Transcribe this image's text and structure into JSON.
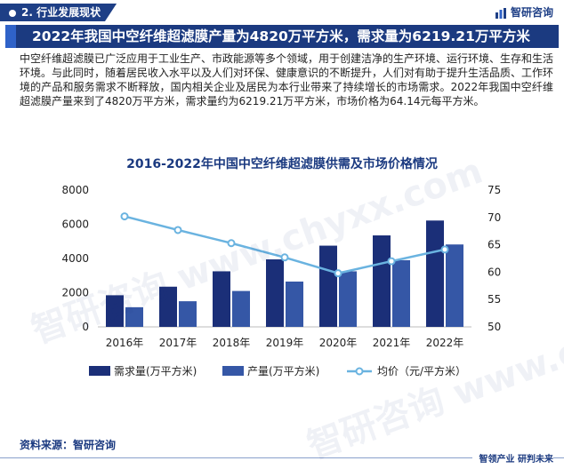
{
  "header": {
    "section_label": "2. 行业发展现状",
    "brand_name": "智研咨询"
  },
  "headline": "2022年我国中空纤维超滤膜产量为4820万平方米，需求量为6219.21万平方米",
  "paragraph": "中空纤维超滤膜已广泛应用于工业生产、市政能源等多个领域，用于创建洁净的生产环境、运行环境、生存和生活环境。与此同时，随着居民收入水平以及人们对环保、健康意识的不断提升，人们对有助于提升生活品质、工作环境的产品和服务需求不断释放，国内相关企业及居民为本行业带来了持续增长的市场需求。2022年我国中空纤维超滤膜产量来到了4820万平方米，需求量约为6219.21万平方米，市场价格为64.14元每平方米。",
  "chart_data": {
    "type": "bar",
    "title": "2016-2022年中国中空纤维超滤膜供需及市场价格情况",
    "categories": [
      "2016年",
      "2017年",
      "2018年",
      "2019年",
      "2020年",
      "2021年",
      "2022年"
    ],
    "series": [
      {
        "name": "需求量(万平方米)",
        "type": "bar",
        "axis": "left",
        "color": "#1b2f78",
        "values": [
          1850,
          2350,
          3250,
          3950,
          4750,
          5350,
          6219.21
        ]
      },
      {
        "name": "产量(万平方米)",
        "type": "bar",
        "axis": "left",
        "color": "#3557a6",
        "values": [
          1150,
          1500,
          2100,
          2650,
          3250,
          3900,
          4820
        ]
      },
      {
        "name": "均价（元/平方米）",
        "type": "line",
        "axis": "right",
        "color": "#6ab3e0",
        "values": [
          70.2,
          67.7,
          65.3,
          62.7,
          59.8,
          62.0,
          64.14
        ]
      }
    ],
    "y_left": {
      "min": 0,
      "max": 8000,
      "ticks": [
        0,
        2000,
        4000,
        6000,
        8000
      ]
    },
    "y_right": {
      "min": 50,
      "max": 75,
      "ticks": [
        50,
        55,
        60,
        65,
        70,
        75
      ]
    },
    "grid": false,
    "legend_position": "bottom"
  },
  "source_label": "资料来源：智研咨询",
  "footer_slogan": "智领产业  研判未来",
  "watermark_text": "智研咨询 www.chyxx.com"
}
